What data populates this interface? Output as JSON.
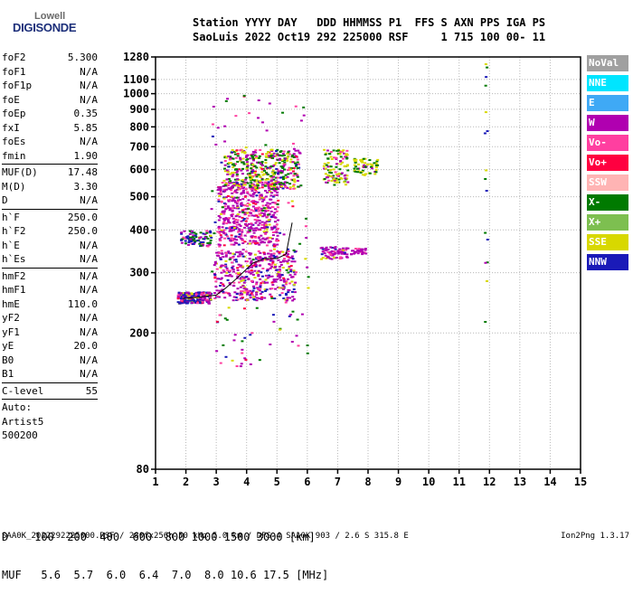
{
  "logo": {
    "name": "Lowell",
    "brand": "DIGISONDE"
  },
  "header": {
    "line1": "Station YYYY DAY   DDD HHMMSS P1  FFS S AXN PPS IGA PS",
    "line2": "SaoLuis 2022 Oct19 292 225000 RSF     1 715 100 00- 11"
  },
  "params": [
    {
      "k": "foF2",
      "v": "5.300"
    },
    {
      "k": "foF1",
      "v": "N/A"
    },
    {
      "k": "foF1p",
      "v": "N/A"
    },
    {
      "k": "foE",
      "v": "N/A"
    },
    {
      "k": "foEp",
      "v": "0.35"
    },
    {
      "k": "fxI",
      "v": "5.85"
    },
    {
      "k": "foEs",
      "v": "N/A"
    },
    {
      "k": "fmin",
      "v": "1.90",
      "sep": true
    },
    {
      "k": "MUF(D)",
      "v": "17.48"
    },
    {
      "k": "M(D)",
      "v": "3.30"
    },
    {
      "k": "D",
      "v": "N/A",
      "sep": true
    },
    {
      "k": "h`F",
      "v": "250.0"
    },
    {
      "k": "h`F2",
      "v": "250.0"
    },
    {
      "k": "h`E",
      "v": "N/A"
    },
    {
      "k": "h`Es",
      "v": "N/A",
      "sep": true
    },
    {
      "k": "hmF2",
      "v": "N/A"
    },
    {
      "k": "hmF1",
      "v": "N/A"
    },
    {
      "k": "hmE",
      "v": "110.0"
    },
    {
      "k": "yF2",
      "v": "N/A"
    },
    {
      "k": "yF1",
      "v": "N/A"
    },
    {
      "k": "yE",
      "v": "20.0"
    },
    {
      "k": "B0",
      "v": "N/A"
    },
    {
      "k": "B1",
      "v": "N/A",
      "sep": true
    },
    {
      "k": "C-level",
      "v": "55",
      "sep": true
    }
  ],
  "auto": [
    "Auto:",
    "Artist5",
    "500200"
  ],
  "legend": [
    {
      "label": "NoVal",
      "color": "#a0a0a0"
    },
    {
      "label": "NNE",
      "color": "#00e5ff"
    },
    {
      "label": "E",
      "color": "#3fa9f5"
    },
    {
      "label": "W",
      "color": "#b000b0"
    },
    {
      "label": "Vo-",
      "color": "#ff3fa0"
    },
    {
      "label": "Vo+",
      "color": "#ff0040"
    },
    {
      "label": "SSW",
      "color": "#ffb4b4"
    },
    {
      "label": "X-",
      "color": "#007a00"
    },
    {
      "label": "X+",
      "color": "#7dbf50"
    },
    {
      "label": "SSE",
      "color": "#d8d800"
    },
    {
      "label": "NNW",
      "color": "#1a1ab8"
    }
  ],
  "muf_table": {
    "line1": "D    100  200  400  600  800 1000 1500 3000 [km]",
    "line2": "MUF   5.6  5.7  6.0  6.4  7.0  8.0 10.6 17.5 [MHz]"
  },
  "footer": {
    "file": "SAA0K_2022292225000.RSF / 280fx256h 50 kHz 5.0 km / DPS-4 SAA0K 903 / 2.6 S 315.8 E",
    "version": "Ion2Png 1.3.17"
  },
  "chart_data": {
    "type": "scatter",
    "xlabel": "",
    "ylabel": "",
    "xlim": [
      1,
      15
    ],
    "ylim": [
      80,
      1280
    ],
    "y_scale": "log",
    "x_ticks": [
      1,
      2,
      3,
      4,
      5,
      6,
      7,
      8,
      9,
      10,
      11,
      12,
      13,
      14,
      15
    ],
    "y_ticks": [
      80,
      200,
      300,
      400,
      500,
      600,
      700,
      800,
      900,
      1000,
      1100,
      1280
    ],
    "grid": true,
    "clusters": [
      {
        "x": [
          1.7,
          2.8
        ],
        "y": [
          245,
          265
        ],
        "n": 220,
        "weights": [
          0.15,
          0.35,
          0,
          0.4,
          0.05,
          0.05
        ]
      },
      {
        "x": [
          2.9,
          5.6
        ],
        "y": [
          250,
          350
        ],
        "n": 420,
        "weights": [
          0.1,
          0.15,
          0,
          0.55,
          0.15,
          0.05
        ]
      },
      {
        "x": [
          3.0,
          5.0
        ],
        "y": [
          360,
          560
        ],
        "n": 520,
        "weights": [
          0.05,
          0.05,
          0,
          0.65,
          0.2,
          0.05
        ]
      },
      {
        "x": [
          3.2,
          5.7
        ],
        "y": [
          530,
          690
        ],
        "n": 420,
        "weights": [
          0.25,
          0.05,
          0.3,
          0.25,
          0.1,
          0.05
        ]
      },
      {
        "x": [
          1.8,
          2.8
        ],
        "y": [
          360,
          400
        ],
        "n": 90,
        "weights": [
          0.05,
          0.35,
          0.3,
          0.2,
          0.1,
          0
        ]
      },
      {
        "x": [
          6.4,
          7.3
        ],
        "y": [
          330,
          360
        ],
        "n": 80,
        "weights": [
          0.05,
          0.05,
          0,
          0.75,
          0.15,
          0
        ]
      },
      {
        "x": [
          7.4,
          7.9
        ],
        "y": [
          340,
          355
        ],
        "n": 30,
        "weights": [
          0,
          0,
          0,
          0.8,
          0.2,
          0
        ]
      },
      {
        "x": [
          6.5,
          7.3
        ],
        "y": [
          540,
          690
        ],
        "n": 120,
        "weights": [
          0.35,
          0,
          0.3,
          0.25,
          0.1,
          0
        ]
      },
      {
        "x": [
          7.5,
          8.3
        ],
        "y": [
          580,
          650
        ],
        "n": 60,
        "weights": [
          0.5,
          0,
          0.3,
          0.2,
          0,
          0
        ]
      },
      {
        "x": [
          2.8,
          6.0
        ],
        "y": [
          160,
          1000
        ],
        "n": 160,
        "weights": [
          0.1,
          0.1,
          0.3,
          0.35,
          0.1,
          0.05
        ]
      },
      {
        "x": [
          11.8,
          11.9
        ],
        "y": [
          190,
          1250
        ],
        "n": 16,
        "weights": [
          0.2,
          0.2,
          0.3,
          0.3,
          0,
          0
        ]
      }
    ],
    "palette": [
      "#d8d800",
      "#1a1ab8",
      "#007a00",
      "#b000b0",
      "#ff3fa0",
      "#ff0040"
    ],
    "trace": {
      "x": [
        1.9,
        2.5,
        3.0,
        3.3,
        3.7,
        4.2,
        4.6,
        5.0,
        5.3,
        5.5
      ],
      "y": [
        252,
        255,
        258,
        270,
        290,
        320,
        330,
        330,
        340,
        420
      ],
      "color": "#000000"
    }
  }
}
